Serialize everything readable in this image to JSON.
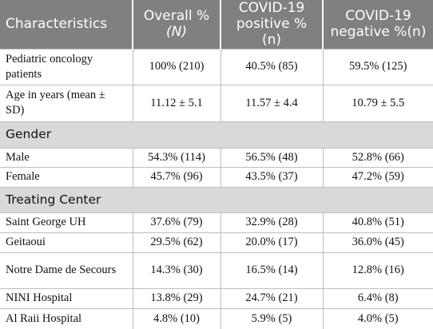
{
  "table": {
    "header": [
      [
        "Characteristics"
      ],
      [
        "Overall %",
        "(N)"
      ],
      [
        "COVID-19",
        "positive % (n)"
      ],
      [
        "COVID-19",
        "negative %(n)"
      ]
    ],
    "rows": [
      [
        "Pediatric oncology patients",
        "100% (210)",
        "40.5% (85)",
        "59.5% (125)"
      ],
      [
        "Age in years (mean ± SD)",
        "11.12 ± 5.1",
        "11.57 ± 4.4",
        "10.79 ± 5.5"
      ],
      [
        "Gender"
      ],
      [
        "Male",
        "54.3% (114)",
        "56.5% (48)",
        "52.8% (66)"
      ],
      [
        "Female",
        "45.7% (96)",
        "43.5% (37)",
        "47.2% (59)"
      ],
      [
        "Treating Center"
      ],
      [
        "Saint George UH",
        "37.6% (79)",
        "32.9% (28)",
        "40.8% (51)"
      ],
      [
        "Geitaoui",
        "29.5% (62)",
        "20.0% (17)",
        "36.0% (45)"
      ],
      [
        "Notre Dame de Secours",
        "14.3% (30)",
        "16.5% (14)",
        "12.8% (16)"
      ],
      [
        "NINI Hospital",
        "13.8% (29)",
        "24.7% (21)",
        "6.4% (8)"
      ],
      [
        "Al Raii Hospital",
        "4.8% (10)",
        "5.9% (5)",
        "4.0% (5)"
      ]
    ]
  }
}
